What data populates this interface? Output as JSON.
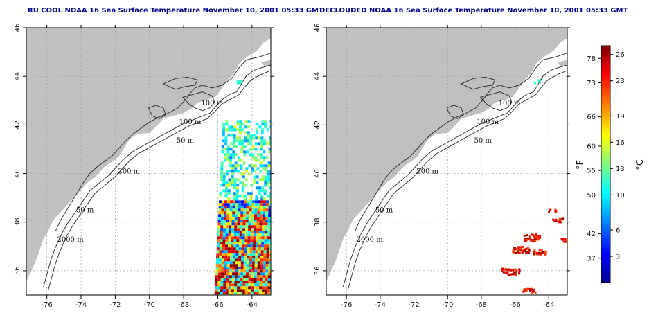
{
  "titles": {
    "left": "RU COOL NOAA 16 Sea Surface Temperature November 10, 2001 05:33 GMT",
    "right": "DECLOUDED NOAA 16 Sea Surface Temperature November 10, 2001 05:33 GMT"
  },
  "axes": {
    "longitude_ticks": [
      -76,
      -74,
      -72,
      -70,
      -68,
      -66,
      -64
    ],
    "latitude_ticks": [
      46,
      44,
      42,
      40,
      38,
      36
    ],
    "lon_range": [
      -77.2,
      -62.9
    ],
    "lat_range": [
      35,
      46
    ]
  },
  "contours": {
    "labels": [
      "100 m",
      "100 m",
      "50 m",
      "200 m",
      "50 m",
      "2000 m"
    ]
  },
  "colorbar": {
    "fahrenheit_ticks": [
      78,
      73,
      66,
      60,
      55,
      50,
      42,
      37
    ],
    "celsius_ticks": [
      26,
      23,
      19,
      16,
      13,
      10,
      6,
      3
    ],
    "fahrenheit_unit": "°F",
    "celsius_unit": "°C",
    "range_c": [
      0,
      27
    ],
    "stops": [
      "#00008f",
      "#0000ff",
      "#0080ff",
      "#00ffff",
      "#80ff80",
      "#ffff00",
      "#ff8000",
      "#ff0000",
      "#800000"
    ]
  },
  "colors": {
    "land": "#c0c0c0",
    "ocean": "#ffffff",
    "grid": "#9a9a9a",
    "title": "#00008b"
  }
}
